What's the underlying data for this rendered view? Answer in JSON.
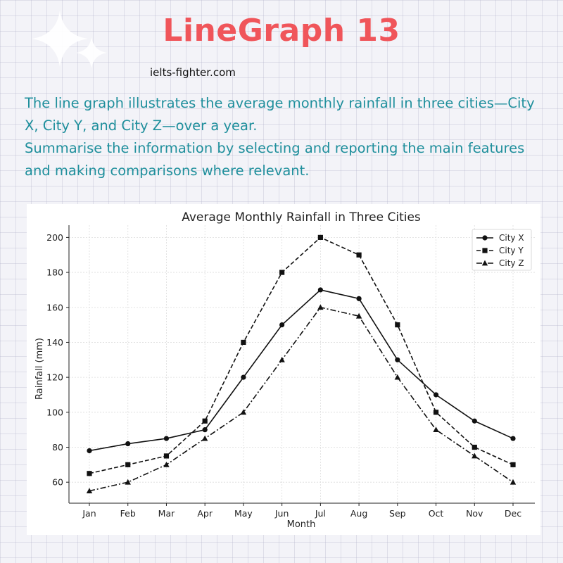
{
  "header": {
    "title": "LineGraph 13",
    "site": "ielts-fighter.com"
  },
  "prompt": {
    "line1": "The line graph illustrates the average monthly rainfall in three cities—City X, City Y, and City Z—over a year.",
    "line2": "Summarise the information by selecting and reporting the main features and making comparisons where relevant."
  },
  "colors": {
    "title": "#f0555a",
    "prompt": "#1f8f9c",
    "series": "#111111"
  },
  "chart_data": {
    "type": "line",
    "title": "Average Monthly Rainfall in Three Cities",
    "xlabel": "Month",
    "ylabel": "Rainfall (mm)",
    "categories": [
      "Jan",
      "Feb",
      "Mar",
      "Apr",
      "May",
      "Jun",
      "Jul",
      "Aug",
      "Sep",
      "Oct",
      "Nov",
      "Dec"
    ],
    "yticks": [
      60,
      80,
      100,
      120,
      140,
      160,
      180,
      200
    ],
    "ylim": [
      48,
      207
    ],
    "grid": true,
    "legend_position": "top-right",
    "series": [
      {
        "name": "City X",
        "marker": "circle",
        "dash": "solid",
        "values": [
          78,
          82,
          85,
          90,
          120,
          150,
          170,
          165,
          130,
          110,
          95,
          85
        ]
      },
      {
        "name": "City Y",
        "marker": "square",
        "dash": "dashed",
        "values": [
          65,
          70,
          75,
          95,
          140,
          180,
          200,
          190,
          150,
          100,
          80,
          70
        ]
      },
      {
        "name": "City Z",
        "marker": "triangle",
        "dash": "dashdot",
        "values": [
          55,
          60,
          70,
          85,
          100,
          130,
          160,
          155,
          120,
          90,
          75,
          60
        ]
      }
    ]
  }
}
